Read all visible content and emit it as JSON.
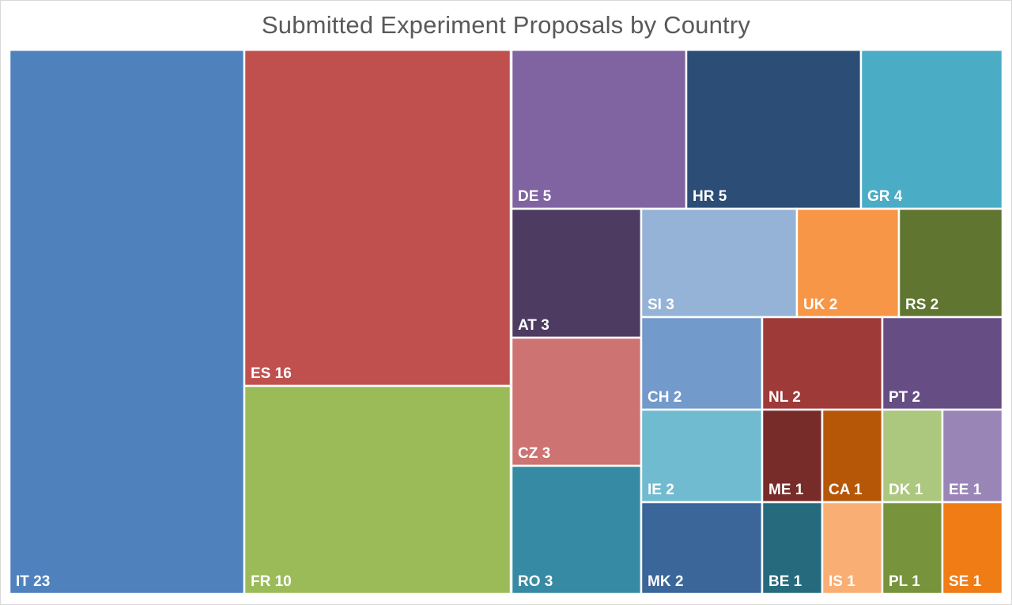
{
  "chart_data": {
    "type": "treemap",
    "title": "Submitted Experiment Proposals by Country",
    "items": [
      {
        "label": "IT",
        "value": 23,
        "color": "#4f81bd"
      },
      {
        "label": "ES",
        "value": 16,
        "color": "#c0504d"
      },
      {
        "label": "FR",
        "value": 10,
        "color": "#9bbb59"
      },
      {
        "label": "DE",
        "value": 5,
        "color": "#8064a2"
      },
      {
        "label": "HR",
        "value": 5,
        "color": "#2c4d75"
      },
      {
        "label": "GR",
        "value": 4,
        "color": "#4bacc6"
      },
      {
        "label": "AT",
        "value": 3,
        "color": "#4d3b62"
      },
      {
        "label": "CZ",
        "value": 3,
        "color": "#cd7371"
      },
      {
        "label": "RO",
        "value": 3,
        "color": "#378aa4"
      },
      {
        "label": "SI",
        "value": 3,
        "color": "#95b3d7"
      },
      {
        "label": "UK",
        "value": 2,
        "color": "#f79646"
      },
      {
        "label": "RS",
        "value": 2,
        "color": "#5f7530"
      },
      {
        "label": "CH",
        "value": 2,
        "color": "#729aca"
      },
      {
        "label": "NL",
        "value": 2,
        "color": "#9e3a38"
      },
      {
        "label": "PT",
        "value": 2,
        "color": "#664e85"
      },
      {
        "label": "IE",
        "value": 2,
        "color": "#70bbd0"
      },
      {
        "label": "MK",
        "value": 2,
        "color": "#3a6699"
      },
      {
        "label": "ME",
        "value": 1,
        "color": "#772c2a"
      },
      {
        "label": "CA",
        "value": 1,
        "color": "#b65708"
      },
      {
        "label": "DK",
        "value": 1,
        "color": "#acc77e"
      },
      {
        "label": "EE",
        "value": 1,
        "color": "#9a85b7"
      },
      {
        "label": "BE",
        "value": 1,
        "color": "#266a7d"
      },
      {
        "label": "IS",
        "value": 1,
        "color": "#f9ae73"
      },
      {
        "label": "PL",
        "value": 1,
        "color": "#77933c"
      },
      {
        "label": "SE",
        "value": 1,
        "color": "#f07c16"
      }
    ]
  }
}
